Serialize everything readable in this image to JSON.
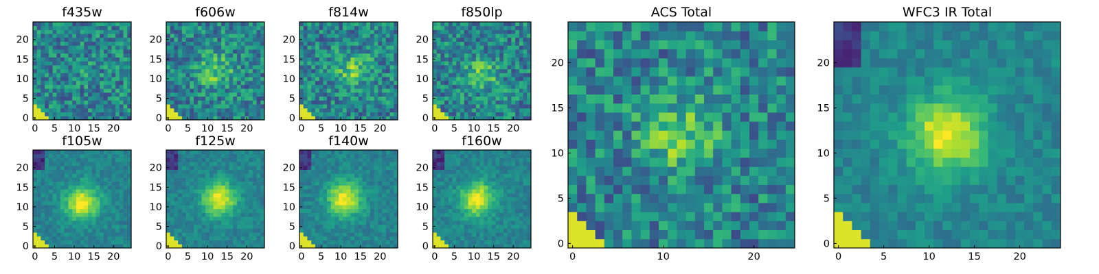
{
  "chart_data": [
    {
      "type": "heatmap",
      "title": "f435w",
      "xticks": [
        "0",
        "5",
        "10",
        "15",
        "20"
      ],
      "yticks": [
        "0",
        "5",
        "10",
        "15",
        "20"
      ],
      "xlim": [
        0,
        25
      ],
      "ylim": [
        0,
        25
      ],
      "grid_size": 25,
      "peak": [
        12,
        12
      ],
      "pattern": "noise",
      "colormap": "viridis"
    },
    {
      "type": "heatmap",
      "title": "f606w",
      "xticks": [
        "0",
        "5",
        "10",
        "15",
        "20"
      ],
      "yticks": [
        "0",
        "5",
        "10",
        "15",
        "20"
      ],
      "xlim": [
        0,
        25
      ],
      "ylim": [
        0,
        25
      ],
      "grid_size": 25,
      "peak": [
        12,
        12
      ],
      "pattern": "weak-source",
      "colormap": "viridis"
    },
    {
      "type": "heatmap",
      "title": "f814w",
      "xticks": [
        "0",
        "5",
        "10",
        "15",
        "20"
      ],
      "yticks": [
        "0",
        "5",
        "10",
        "15",
        "20"
      ],
      "xlim": [
        0,
        25
      ],
      "ylim": [
        0,
        25
      ],
      "grid_size": 25,
      "peak": [
        13,
        12
      ],
      "pattern": "weak-source",
      "colormap": "viridis"
    },
    {
      "type": "heatmap",
      "title": "f850lp",
      "xticks": [
        "0",
        "5",
        "10",
        "15",
        "20"
      ],
      "yticks": [
        "0",
        "5",
        "10",
        "15",
        "20"
      ],
      "xlim": [
        0,
        25
      ],
      "ylim": [
        0,
        25
      ],
      "grid_size": 25,
      "peak": [
        12,
        11
      ],
      "pattern": "weak-source",
      "colormap": "viridis"
    },
    {
      "type": "heatmap",
      "title": "f105w",
      "xticks": [
        "0",
        "5",
        "10",
        "15",
        "20"
      ],
      "yticks": [
        "0",
        "5",
        "10",
        "15",
        "20"
      ],
      "xlim": [
        0,
        25
      ],
      "ylim": [
        0,
        25
      ],
      "grid_size": 25,
      "peak": [
        12,
        11
      ],
      "pattern": "source",
      "colormap": "viridis"
    },
    {
      "type": "heatmap",
      "title": "f125w",
      "xticks": [
        "0",
        "5",
        "10",
        "15",
        "20"
      ],
      "yticks": [
        "0",
        "5",
        "10",
        "15",
        "20"
      ],
      "xlim": [
        0,
        25
      ],
      "ylim": [
        0,
        25
      ],
      "grid_size": 25,
      "peak": [
        13,
        12
      ],
      "pattern": "source",
      "colormap": "viridis"
    },
    {
      "type": "heatmap",
      "title": "f140w",
      "xticks": [
        "0",
        "5",
        "10",
        "15",
        "20"
      ],
      "yticks": [
        "0",
        "5",
        "10",
        "15",
        "20"
      ],
      "xlim": [
        0,
        25
      ],
      "ylim": [
        0,
        25
      ],
      "grid_size": 25,
      "peak": [
        11,
        12
      ],
      "pattern": "source",
      "colormap": "viridis"
    },
    {
      "type": "heatmap",
      "title": "f160w",
      "xticks": [
        "0",
        "5",
        "10",
        "15",
        "20"
      ],
      "yticks": [
        "0",
        "5",
        "10",
        "15",
        "20"
      ],
      "xlim": [
        0,
        25
      ],
      "ylim": [
        0,
        25
      ],
      "grid_size": 25,
      "peak": [
        11,
        12
      ],
      "pattern": "source",
      "colormap": "viridis"
    },
    {
      "type": "heatmap",
      "title": "ACS Total",
      "xticks": [
        "0",
        "10",
        "20"
      ],
      "yticks": [
        "0",
        "5",
        "10",
        "15",
        "20"
      ],
      "xlim": [
        0,
        25
      ],
      "ylim": [
        0,
        25
      ],
      "grid_size": 25,
      "peak": [
        12,
        12
      ],
      "pattern": "weak-source",
      "colormap": "viridis"
    },
    {
      "type": "heatmap",
      "title": "WFC3 IR Total",
      "xticks": [
        "0",
        "5",
        "10",
        "15",
        "20"
      ],
      "yticks": [
        "0",
        "5",
        "10",
        "15",
        "20"
      ],
      "xlim": [
        0,
        25
      ],
      "ylim": [
        0,
        25
      ],
      "grid_size": 25,
      "peak": [
        12,
        12
      ],
      "pattern": "source",
      "colormap": "viridis"
    }
  ]
}
